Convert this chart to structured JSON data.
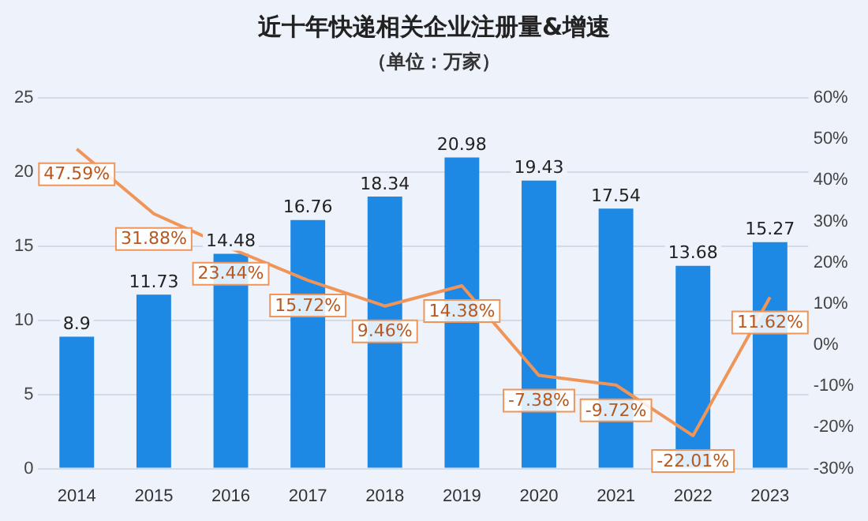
{
  "chart_data": {
    "type": "bar",
    "title": "近十年快递相关企业注册量&增速",
    "subtitle": "（单位：万家）",
    "categories": [
      "2014",
      "2015",
      "2016",
      "2017",
      "2018",
      "2019",
      "2020",
      "2021",
      "2022",
      "2023"
    ],
    "series": [
      {
        "type": "bar",
        "color": "#1e88e5",
        "values": [
          8.9,
          11.73,
          14.48,
          16.76,
          18.34,
          20.98,
          19.43,
          17.54,
          13.68,
          15.27
        ],
        "value_labels": [
          "8.9",
          "11.73",
          "14.48",
          "16.76",
          "18.34",
          "20.98",
          "19.43",
          "17.54",
          "13.68",
          "15.27"
        ]
      },
      {
        "type": "line",
        "axis": "y2",
        "color": "#f0955a",
        "values": [
          47.59,
          31.88,
          23.44,
          15.72,
          9.46,
          14.38,
          -7.38,
          -9.72,
          -22.01,
          11.62
        ],
        "value_labels": [
          "47.59%",
          "31.88%",
          "23.44%",
          "15.72%",
          "9.46%",
          "14.38%",
          "-7.38%",
          "-9.72%",
          "-22.01%",
          "11.62%"
        ]
      }
    ],
    "ylim": [
      0,
      25
    ],
    "yticks": [
      0,
      5,
      10,
      15,
      20,
      25
    ],
    "y2lim": [
      -30,
      60
    ],
    "y2ticks": [
      {
        "value": -30,
        "label": "-30%"
      },
      {
        "value": -20,
        "label": "-20%"
      },
      {
        "value": -10,
        "label": "-10%"
      },
      {
        "value": 0,
        "label": "0%"
      },
      {
        "value": 10,
        "label": "10%"
      },
      {
        "value": 20,
        "label": "20%"
      },
      {
        "value": 30,
        "label": "30%"
      },
      {
        "value": 40,
        "label": "40%"
      },
      {
        "value": 50,
        "label": "50%"
      },
      {
        "value": 60,
        "label": "60%"
      }
    ],
    "grid": "y",
    "legend": false,
    "marker": "none",
    "line_style": "solid"
  }
}
